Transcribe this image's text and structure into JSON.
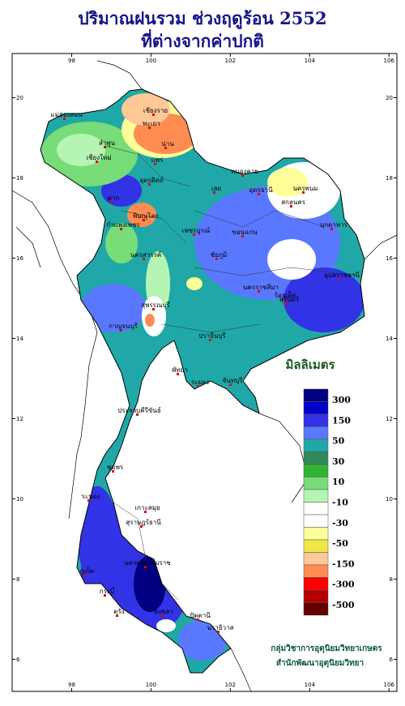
{
  "header": {
    "title": "ปริมาณฝนรวม ช่วงฤดูร้อน 2552",
    "subtitle": "ที่ต่างจากค่าปกติ"
  },
  "map": {
    "lon_range": [
      96.5,
      106.2
    ],
    "lat_range": [
      5.2,
      21.1
    ],
    "lon_ticks": [
      98,
      100,
      102,
      104,
      106
    ],
    "lat_ticks": [
      6,
      8,
      10,
      12,
      14,
      16,
      18,
      20
    ],
    "places": [
      "เชียงราย",
      "แม่ฮ่องสอน",
      "เชียงใหม่",
      "ลำพูน",
      "พะเยา",
      "น่าน",
      "แพร่",
      "อุตรดิตถ์",
      "ตาก",
      "พิษณุโลก",
      "กำแพงเพชร",
      "นครสวรรค์",
      "เพชรบูรณ์",
      "เลย",
      "หนองคาย",
      "อุดรธานี",
      "นครพนม",
      "สกลนคร",
      "มุกดาหาร",
      "ขอนแก่น",
      "ชัยภูมิ",
      "นครราชสีมา",
      "ร้อยเอ็ด",
      "อุบลราชธานี",
      "สุรินทร์",
      "สุพรรณบุรี",
      "กาญจนบุรี",
      "ปราจีนบุรี",
      "พัทยา",
      "ระยอง",
      "จันทบุรี",
      "ประจวบคีรีขันธ์",
      "ชุมพร",
      "ระนอง",
      "เกาะสมุย",
      "สุราษฎร์ธานี",
      "ภูเก็ต",
      "กระบี่",
      "นครศรีธรรมราช",
      "ตรัง",
      "สงขลา",
      "ปัตตานี",
      "นราธิวาส"
    ]
  },
  "legend": {
    "title": "มิลลิเมตร",
    "colors": [
      "#000080",
      "#0000c8",
      "#3232e6",
      "#5a78ff",
      "#20a8a8",
      "#2e8b57",
      "#32b432",
      "#78dc78",
      "#b4f5b4",
      "#ffffff",
      "#ffffff",
      "#ffff9a",
      "#f0e646",
      "#ffc896",
      "#ff8c50",
      "#ff0000",
      "#b40000",
      "#640000"
    ],
    "labels": [
      "300",
      "150",
      "50",
      "30",
      "10",
      "-10",
      "-30",
      "-50",
      "-150",
      "-300",
      "-500"
    ]
  },
  "credits": [
    "กลุ่มวิชาการอุตุนิยมวิทยาเกษตร",
    "สำนักพัฒนาอุตุนิยมวิทยา"
  ]
}
